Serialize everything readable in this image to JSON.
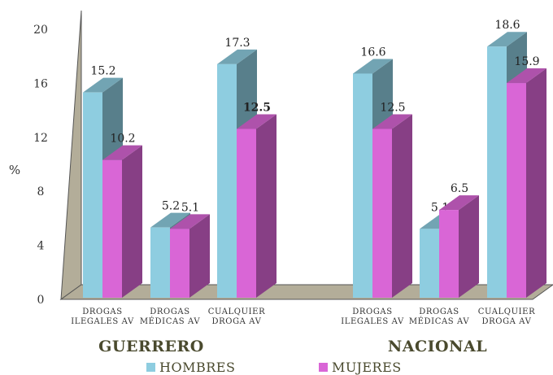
{
  "chart_data": {
    "type": "bar",
    "ylabel": "%",
    "ylim": [
      0,
      20
    ],
    "yticks": [
      0,
      4,
      8,
      12,
      16,
      20
    ],
    "grid": false,
    "legend_position": "bottom",
    "groups": [
      {
        "name": "GUERRERO",
        "categories": [
          "DROGAS ILEGALES AV",
          "DROGAS MÉDICAS AV",
          "CUALQUIER DROGA AV"
        ]
      },
      {
        "name": "NACIONAL",
        "categories": [
          "DROGAS ILEGALES AV",
          "DROGAS MÉDICAS AV",
          "CUALQUIER DROGA AV"
        ]
      }
    ],
    "categories": [
      [
        "DROGAS",
        "ILEGALES AV"
      ],
      [
        "DROGAS",
        "MÉDICAS AV"
      ],
      [
        "CUALQUIER",
        "DROGA AV"
      ],
      [
        "DROGAS",
        "ILEGALES AV"
      ],
      [
        "DROGAS",
        "MÉDICAS AV"
      ],
      [
        "CUALQUIER",
        "DROGA AV"
      ]
    ],
    "series": [
      {
        "name": "HOMBRES",
        "color": "#8ecde0",
        "values": [
          15.2,
          5.2,
          17.3,
          16.6,
          5.1,
          18.6
        ]
      },
      {
        "name": "MUJERES",
        "color": "#d966d6",
        "values": [
          10.2,
          5.1,
          12.5,
          12.5,
          6.5,
          15.9
        ]
      }
    ],
    "highlight_label_color": "#6f8a1a",
    "highlight": {
      "series": 1,
      "index": 2
    }
  }
}
